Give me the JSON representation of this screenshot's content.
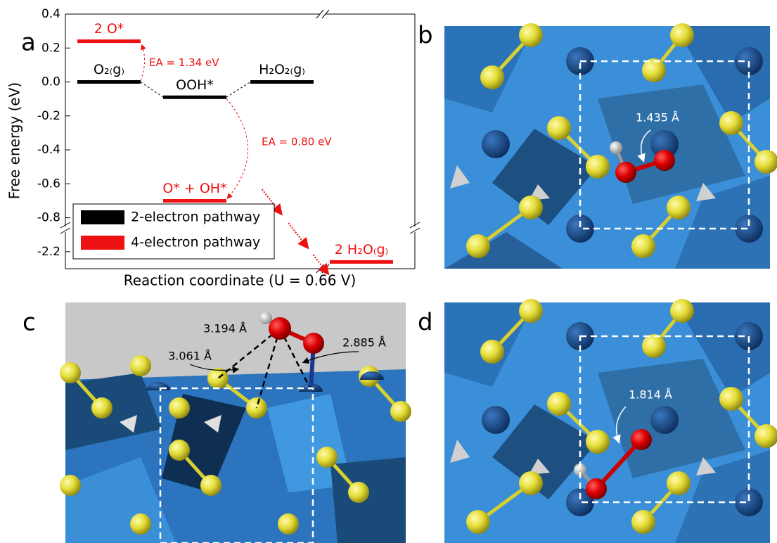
{
  "panel_labels": [
    "a",
    "b",
    "c",
    "d"
  ],
  "chart_data": {
    "type": "energy-diagram",
    "ylabel": "Free energy (eV)",
    "xlabel": "Reaction coordinate (U = 0.66 V)",
    "ylim": [
      -2.3,
      0.4
    ],
    "axis_break": [
      -2.1,
      -0.9
    ],
    "yticks": [
      0.4,
      0.2,
      {
        "value": 0,
        "label": "0.0"
      },
      -0.2,
      -0.4,
      -0.6,
      -0.8,
      -2.2
    ],
    "series": [
      {
        "name": "2-electron pathway",
        "color": "#000000",
        "labels": [
          "O₂₍g₎",
          "OOH*",
          "H₂O₂₍g₎"
        ],
        "values": [
          0,
          -0.09,
          0
        ]
      },
      {
        "name": "4-electron pathway",
        "color": "#ee1111",
        "labels": [
          "2 O*",
          "O* + OH*",
          "2 H₂O₍g₎"
        ],
        "values": [
          0.24,
          -0.7,
          -2.26
        ]
      }
    ],
    "annotations": [
      "EA = 1.34 eV",
      "EA = 0.80 eV"
    ],
    "legend": "lower left"
  },
  "panel_b": {
    "distance": "1.435 Å"
  },
  "panel_c": {
    "distances": [
      "3.194 Å",
      "3.061 Å",
      "2.885 Å"
    ]
  },
  "panel_d": {
    "distance": "1.814 Å"
  }
}
